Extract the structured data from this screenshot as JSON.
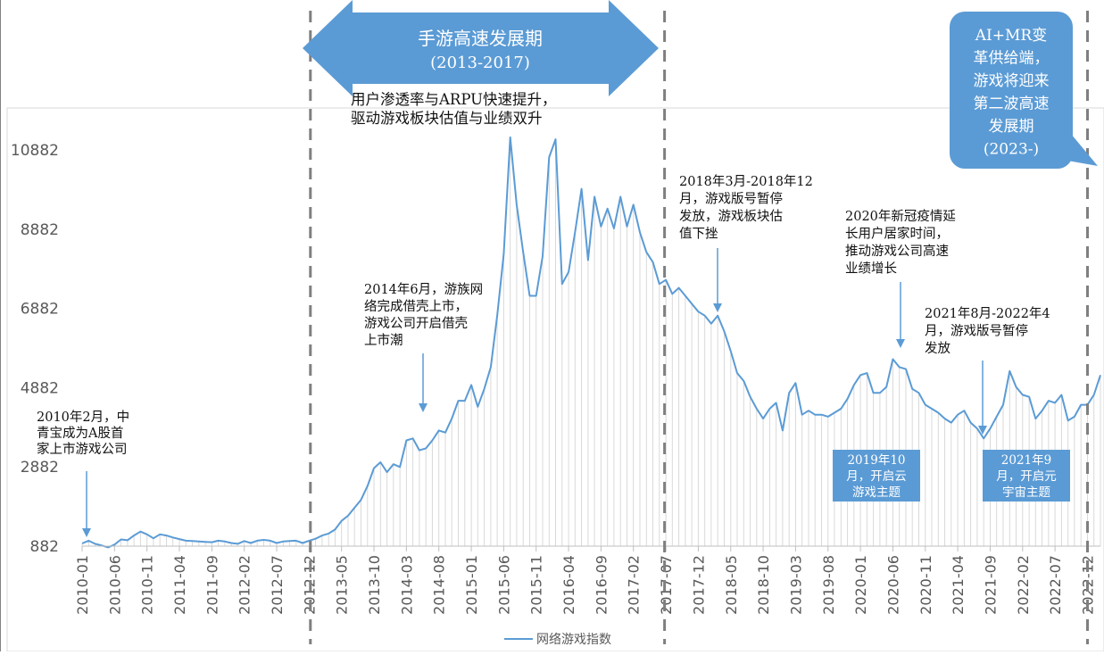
{
  "chart_data": {
    "type": "line",
    "title": "",
    "xlabel": "",
    "ylabel": "",
    "ylim": [
      882,
      11882
    ],
    "y_ticks": [
      882,
      2882,
      4882,
      6882,
      8882,
      10882
    ],
    "x_ticks": [
      "2010-01",
      "2010-06",
      "2010-11",
      "2011-04",
      "2011-09",
      "2012-02",
      "2012-07",
      "2012-12",
      "2013-05",
      "2013-10",
      "2014-03",
      "2014-08",
      "2015-01",
      "2015-06",
      "2015-11",
      "2016-04",
      "2016-09",
      "2017-02",
      "2017-07",
      "2017-12",
      "2018-05",
      "2018-10",
      "2019-03",
      "2019-08",
      "2020-01",
      "2020-06",
      "2020-11",
      "2021-04",
      "2021-09",
      "2022-02",
      "2022-07",
      "2022-12"
    ],
    "series": [
      {
        "name": "网络游戏指数",
        "start": "2010-01",
        "frequency": "monthly",
        "values": [
          950,
          1020,
          940,
          900,
          850,
          920,
          1050,
          1030,
          1150,
          1250,
          1180,
          1080,
          1180,
          1150,
          1100,
          1060,
          1020,
          1010,
          1000,
          990,
          980,
          1020,
          1000,
          960,
          940,
          1010,
          960,
          1020,
          1040,
          1020,
          960,
          1000,
          1010,
          1020,
          960,
          1020,
          1070,
          1150,
          1200,
          1300,
          1520,
          1650,
          1850,
          2050,
          2400,
          2850,
          3000,
          2750,
          2950,
          2880,
          3550,
          3600,
          3300,
          3350,
          3550,
          3800,
          3750,
          4100,
          4550,
          4550,
          4950,
          4400,
          4850,
          5400,
          6700,
          8250,
          11200,
          9500,
          8300,
          7200,
          7200,
          8200,
          10700,
          11150,
          7500,
          7800,
          8800,
          9900,
          8100,
          9700,
          8950,
          9400,
          8900,
          9700,
          8950,
          9500,
          8800,
          8300,
          8050,
          7500,
          7600,
          7250,
          7400,
          7200,
          7000,
          6800,
          6700,
          6500,
          6700,
          6300,
          5800,
          5250,
          5050,
          4650,
          4350,
          4100,
          4350,
          4500,
          3800,
          4750,
          5000,
          4200,
          4300,
          4200,
          4200,
          4150,
          4250,
          4350,
          4600,
          4950,
          5200,
          5250,
          4750,
          4750,
          4900,
          5600,
          5400,
          5350,
          4850,
          4750,
          4450,
          4350,
          4250,
          4100,
          4000,
          4200,
          4300,
          4000,
          3850,
          3600,
          3850,
          4150,
          4450,
          5300,
          4900,
          4700,
          4650,
          4100,
          4300,
          4550,
          4500,
          4700,
          4050,
          4150,
          4450,
          4450,
          4700,
          5200
        ]
      }
    ],
    "legend": {
      "position": "bottom",
      "label": "网络游戏指数"
    },
    "periods": {
      "phase1": {
        "title": "手游高速发展期",
        "years": "(2013-2017)"
      },
      "phase1_desc": [
        "用户渗透率与ARPU快速提升，",
        "驱动游戏板块估值与业绩双升"
      ],
      "phase2": [
        "AI+MR变",
        "革供给端，",
        "游戏将迎来",
        "第二波高速",
        "发展期",
        "(2023-)"
      ]
    },
    "annotations": [
      {
        "id": "zqb",
        "lines": [
          "2010年2月，中",
          "青宝成为A股首",
          "家上市游戏公司"
        ]
      },
      {
        "id": "yz",
        "lines": [
          "2014年6月，游族网",
          "络完成借壳上市，",
          "游戏公司开启借壳",
          "上市潮"
        ]
      },
      {
        "id": "bh1",
        "lines": [
          "2018年3月-2018年12",
          "月，游戏版号暂停",
          "发放，游戏板块估",
          "值下挫"
        ]
      },
      {
        "id": "covid",
        "lines": [
          "2020年新冠疫情延",
          "长用户居家时间，",
          "推动游戏公司高速",
          "业绩增长"
        ]
      },
      {
        "id": "bh2",
        "lines": [
          "2021年8月-2022年4",
          "月，游戏版号暂停",
          "发放"
        ]
      },
      {
        "id": "cloud",
        "lines": [
          "2019年10",
          "月，开启云",
          "游戏主题"
        ]
      },
      {
        "id": "meta",
        "lines": [
          "2021年9",
          "月，开启元",
          "宇宙主题"
        ]
      }
    ],
    "colors": {
      "line": "#5b9bd5",
      "fill": "#d9d9d9",
      "arrow": "#5b9bd5",
      "box": "#5b9bd5",
      "dash": "#7f7f7f"
    },
    "grid": false
  }
}
